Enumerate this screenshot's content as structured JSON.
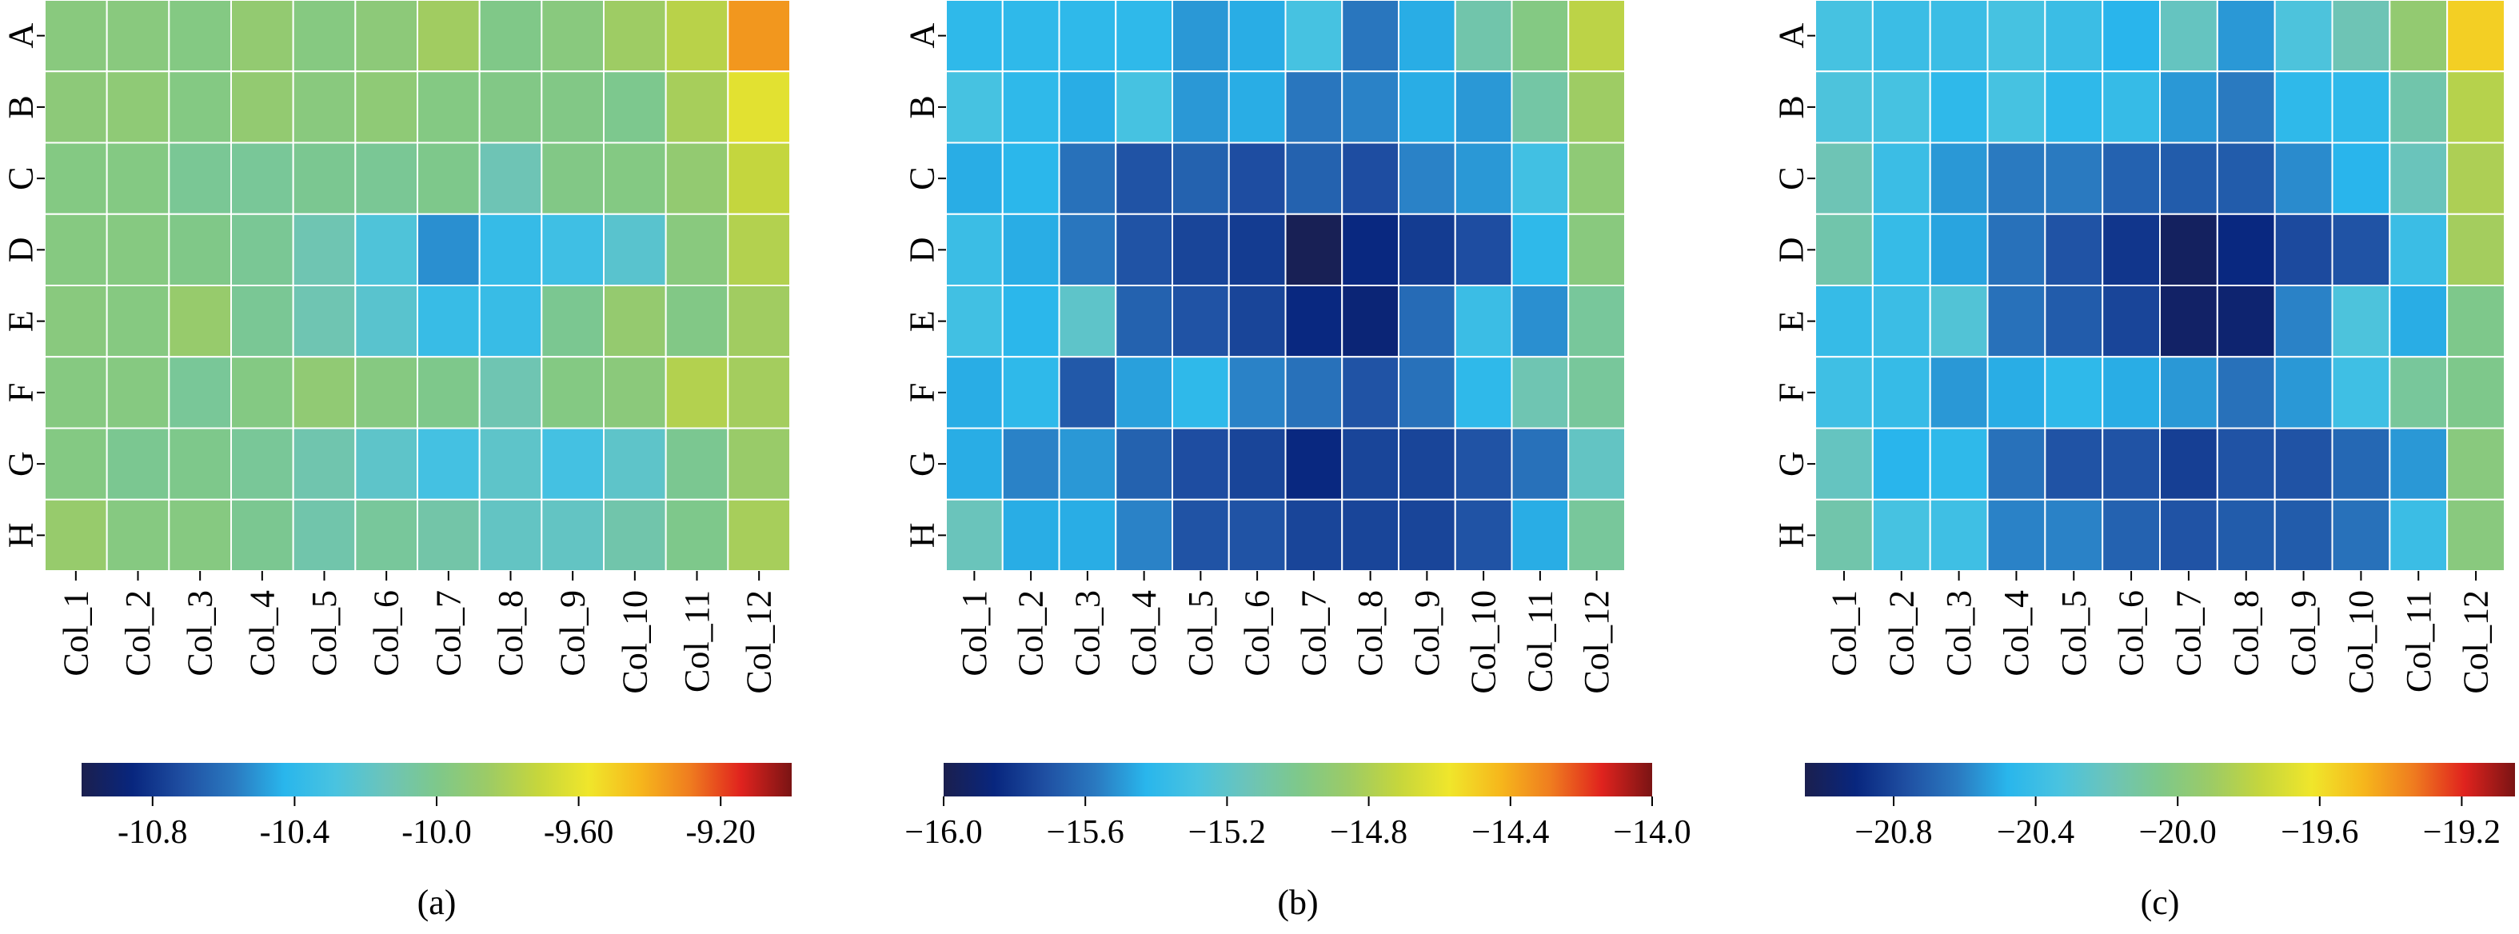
{
  "chart_data": [
    {
      "type": "heatmap",
      "caption": "(a)",
      "rows": [
        "A",
        "B",
        "C",
        "D",
        "E",
        "F",
        "G",
        "H"
      ],
      "columns": [
        "Col_1",
        "Col_2",
        "Col_3",
        "Col_4",
        "Col_5",
        "Col_6",
        "Col_7",
        "Col_8",
        "Col_9",
        "Col_10",
        "Col_11",
        "Col_12"
      ],
      "values": [
        [
          -9.95,
          -9.95,
          -9.97,
          -9.9,
          -9.96,
          -9.93,
          -9.84,
          -9.99,
          -9.95,
          -9.85,
          -9.76,
          -9.35
        ],
        [
          -9.93,
          -9.92,
          -9.97,
          -9.9,
          -9.95,
          -9.92,
          -9.97,
          -9.98,
          -9.98,
          -10.01,
          -9.82,
          -9.62
        ],
        [
          -9.97,
          -9.97,
          -10.03,
          -10.04,
          -10.02,
          -10.03,
          -10.0,
          -10.13,
          -9.98,
          -9.97,
          -9.9,
          -9.72
        ],
        [
          -9.96,
          -9.96,
          -9.99,
          -10.03,
          -10.12,
          -10.26,
          -10.52,
          -10.37,
          -10.33,
          -10.22,
          -9.95,
          -9.78
        ],
        [
          -9.95,
          -9.96,
          -9.88,
          -10.03,
          -10.12,
          -10.22,
          -10.36,
          -10.36,
          -10.02,
          -9.89,
          -9.98,
          -9.84
        ],
        [
          -9.96,
          -9.96,
          -10.04,
          -9.97,
          -9.91,
          -9.96,
          -10.0,
          -10.12,
          -9.97,
          -9.94,
          -9.78,
          -9.83
        ],
        [
          -9.97,
          -10.02,
          -10.0,
          -10.04,
          -10.11,
          -10.2,
          -10.31,
          -10.2,
          -10.31,
          -10.2,
          -10.02,
          -9.87
        ],
        [
          -9.88,
          -9.96,
          -9.96,
          -10.02,
          -10.1,
          -10.05,
          -10.09,
          -10.18,
          -10.18,
          -10.1,
          -10.0,
          -9.82
        ]
      ],
      "vmin": -11.0,
      "vmax": -9.0,
      "colorbar_ticks": [
        "-10.8",
        "-10.4",
        "-10.0",
        "-9.60",
        "-9.20"
      ],
      "colorbar_tick_values": [
        -10.8,
        -10.4,
        -10.0,
        -9.6,
        -9.2
      ]
    },
    {
      "type": "heatmap",
      "caption": "(b)",
      "rows": [
        "A",
        "B",
        "C",
        "D",
        "E",
        "F",
        "G",
        "H"
      ],
      "columns": [
        "Col_1",
        "Col_2",
        "Col_3",
        "Col_4",
        "Col_5",
        "Col_6",
        "Col_7",
        "Col_8",
        "Col_9",
        "Col_10",
        "Col_11",
        "Col_12"
      ],
      "values": [
        [
          -15.4,
          -15.4,
          -15.4,
          -15.4,
          -15.5,
          -15.45,
          -15.3,
          -15.58,
          -15.45,
          -15.1,
          -14.97,
          -14.75
        ],
        [
          -15.3,
          -15.4,
          -15.45,
          -15.3,
          -15.5,
          -15.45,
          -15.58,
          -15.55,
          -15.45,
          -15.5,
          -15.08,
          -14.85
        ],
        [
          -15.45,
          -15.42,
          -15.6,
          -15.7,
          -15.65,
          -15.72,
          -15.65,
          -15.72,
          -15.55,
          -15.5,
          -15.32,
          -14.92
        ],
        [
          -15.35,
          -15.45,
          -15.58,
          -15.7,
          -15.75,
          -15.78,
          -15.98,
          -15.85,
          -15.78,
          -15.72,
          -15.4,
          -14.95
        ],
        [
          -15.32,
          -15.42,
          -15.2,
          -15.65,
          -15.7,
          -15.75,
          -15.85,
          -15.88,
          -15.62,
          -15.35,
          -15.52,
          -15.05
        ],
        [
          -15.45,
          -15.4,
          -15.68,
          -15.48,
          -15.4,
          -15.55,
          -15.6,
          -15.7,
          -15.6,
          -15.4,
          -15.12,
          -15.05
        ],
        [
          -15.45,
          -15.55,
          -15.5,
          -15.65,
          -15.72,
          -15.75,
          -15.85,
          -15.75,
          -15.75,
          -15.7,
          -15.6,
          -15.18
        ],
        [
          -15.15,
          -15.45,
          -15.45,
          -15.55,
          -15.7,
          -15.7,
          -15.75,
          -15.75,
          -15.75,
          -15.7,
          -15.45,
          -15.05
        ]
      ],
      "vmin": -16.0,
      "vmax": -14.0,
      "colorbar_ticks": [
        "−16.0",
        "−15.6",
        "−15.2",
        "−14.8",
        "−14.4",
        "−14.0"
      ],
      "colorbar_tick_values": [
        -16.0,
        -15.6,
        -15.2,
        -14.8,
        -14.4,
        -14.0
      ]
    },
    {
      "type": "heatmap",
      "caption": "(c)",
      "rows": [
        "A",
        "B",
        "C",
        "D",
        "E",
        "F",
        "G",
        "H"
      ],
      "columns": [
        "Col_1",
        "Col_2",
        "Col_3",
        "Col_4",
        "Col_5",
        "Col_6",
        "Col_7",
        "Col_8",
        "Col_9",
        "Col_10",
        "Col_11",
        "Col_12"
      ],
      "values": [
        [
          -20.35,
          -20.4,
          -20.4,
          -20.35,
          -20.4,
          -20.48,
          -20.22,
          -20.55,
          -20.32,
          -20.18,
          -19.95,
          -19.55
        ],
        [
          -20.32,
          -20.35,
          -20.45,
          -20.35,
          -20.45,
          -20.42,
          -20.55,
          -20.62,
          -20.45,
          -20.45,
          -20.15,
          -19.82
        ],
        [
          -20.18,
          -20.4,
          -20.55,
          -20.62,
          -20.62,
          -20.7,
          -20.72,
          -20.72,
          -20.58,
          -20.48,
          -20.2,
          -19.85
        ],
        [
          -20.15,
          -20.42,
          -20.52,
          -20.65,
          -20.75,
          -20.85,
          -21.0,
          -20.9,
          -20.78,
          -20.75,
          -20.4,
          -19.88
        ],
        [
          -20.42,
          -20.4,
          -20.3,
          -20.65,
          -20.72,
          -20.8,
          -20.98,
          -20.95,
          -20.6,
          -20.32,
          -20.5,
          -20.05
        ],
        [
          -20.38,
          -20.42,
          -20.55,
          -20.5,
          -20.45,
          -20.5,
          -20.55,
          -20.65,
          -20.55,
          -20.38,
          -20.1,
          -20.05
        ],
        [
          -20.22,
          -20.48,
          -20.45,
          -20.65,
          -20.75,
          -20.75,
          -20.82,
          -20.75,
          -20.75,
          -20.68,
          -20.55,
          -20.0
        ],
        [
          -20.15,
          -20.35,
          -20.38,
          -20.6,
          -20.6,
          -20.7,
          -20.75,
          -20.72,
          -20.72,
          -20.65,
          -20.4,
          -20.0
        ]
      ],
      "vmin": -21.05,
      "vmax": -19.05,
      "colorbar_ticks": [
        "−20.8",
        "−20.4",
        "−20.0",
        "−19.6",
        "−19.2"
      ],
      "colorbar_tick_values": [
        -20.8,
        -20.4,
        -20.0,
        -19.6,
        -19.2
      ]
    }
  ],
  "colormap": [
    "#1b1f4e",
    "#08267e",
    "#1f4fa2",
    "#2a79c0",
    "#29b6ec",
    "#49c3e0",
    "#6cc4b9",
    "#7ec88b",
    "#9ccb66",
    "#c6d63c",
    "#f0e62b",
    "#f6b71c",
    "#ef7c1f",
    "#e0231e",
    "#7a1414"
  ]
}
